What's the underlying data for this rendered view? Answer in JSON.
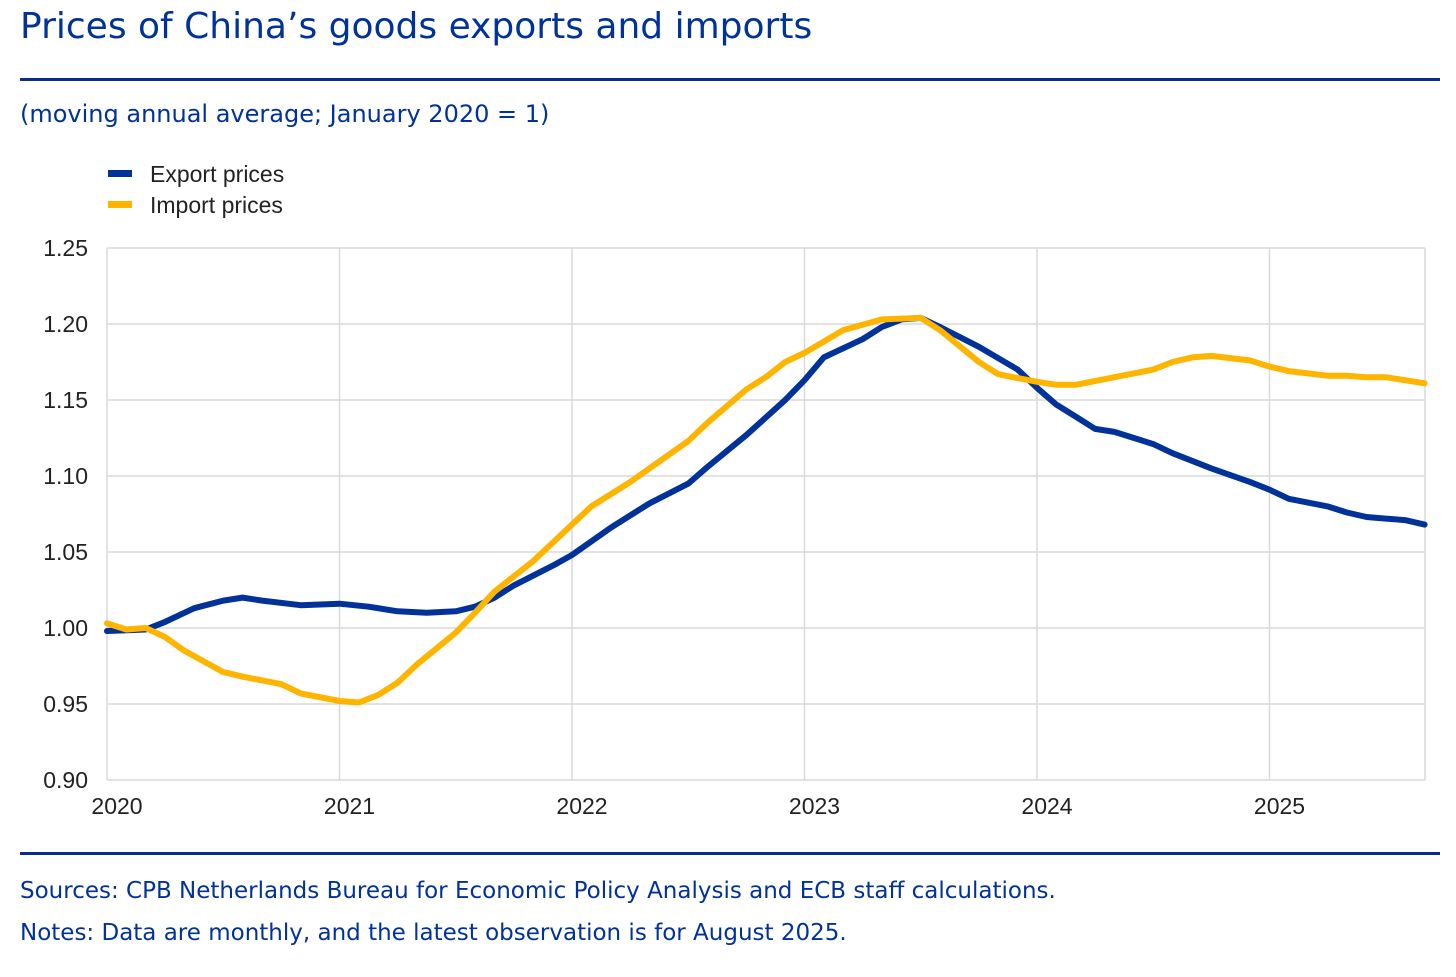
{
  "header": {
    "title": "Prices of China’s goods exports and imports",
    "subtitle": "(moving annual average; January 2020 = 1)"
  },
  "footer": {
    "sources": "Sources: CPB Netherlands Bureau for Economic Policy Analysis and ECB staff calculations.",
    "notes": "Notes: Data are monthly, and the latest observation is for August 2025."
  },
  "colors": {
    "title": "#003299",
    "rule": "#0a2d8c",
    "grid": "#d9d9d9",
    "export": "#003299",
    "import": "#FFB400"
  },
  "chart_data": {
    "type": "line",
    "title": "Prices of China’s goods exports and imports",
    "subtitle": "(moving annual average; January 2020 = 1)",
    "xlabel": "",
    "ylabel": "",
    "x_start": "2020-01",
    "x_end": "2025-08",
    "xlim": [
      2020.0,
      2025.667
    ],
    "ylim": [
      0.9,
      1.25
    ],
    "x_ticks": [
      2020,
      2021,
      2022,
      2023,
      2024,
      2025
    ],
    "x_tick_labels": [
      "2020",
      "2021",
      "2022",
      "2023",
      "2024",
      "2025"
    ],
    "y_ticks": [
      0.9,
      0.95,
      1.0,
      1.05,
      1.1,
      1.15,
      1.2,
      1.25
    ],
    "y_tick_labels": [
      "0.90",
      "0.95",
      "1.00",
      "1.05",
      "1.10",
      "1.15",
      "1.20",
      "1.25"
    ],
    "grid": true,
    "legend_position": "top-left",
    "series": [
      {
        "name": "Export prices",
        "color": "#003299",
        "points": [
          [
            2020.0,
            0.998
          ],
          [
            2020.167,
            0.999
          ],
          [
            2020.25,
            1.004
          ],
          [
            2020.375,
            1.013
          ],
          [
            2020.5,
            1.018
          ],
          [
            2020.583,
            1.02
          ],
          [
            2020.667,
            1.018
          ],
          [
            2020.833,
            1.015
          ],
          [
            2021.0,
            1.016
          ],
          [
            2021.125,
            1.014
          ],
          [
            2021.25,
            1.011
          ],
          [
            2021.375,
            1.01
          ],
          [
            2021.5,
            1.011
          ],
          [
            2021.583,
            1.014
          ],
          [
            2021.667,
            1.02
          ],
          [
            2021.75,
            1.028
          ],
          [
            2021.917,
            1.041
          ],
          [
            2022.0,
            1.048
          ],
          [
            2022.167,
            1.066
          ],
          [
            2022.333,
            1.082
          ],
          [
            2022.5,
            1.095
          ],
          [
            2022.583,
            1.106
          ],
          [
            2022.75,
            1.127
          ],
          [
            2022.917,
            1.15
          ],
          [
            2023.0,
            1.163
          ],
          [
            2023.083,
            1.178
          ],
          [
            2023.25,
            1.19
          ],
          [
            2023.333,
            1.198
          ],
          [
            2023.417,
            1.203
          ],
          [
            2023.5,
            1.204
          ],
          [
            2023.583,
            1.198
          ],
          [
            2023.75,
            1.185
          ],
          [
            2023.917,
            1.17
          ],
          [
            2024.0,
            1.158
          ],
          [
            2024.083,
            1.147
          ],
          [
            2024.167,
            1.139
          ],
          [
            2024.25,
            1.131
          ],
          [
            2024.333,
            1.129
          ],
          [
            2024.417,
            1.125
          ],
          [
            2024.5,
            1.121
          ],
          [
            2024.583,
            1.115
          ],
          [
            2024.75,
            1.105
          ],
          [
            2024.917,
            1.096
          ],
          [
            2025.0,
            1.091
          ],
          [
            2025.083,
            1.085
          ],
          [
            2025.25,
            1.08
          ],
          [
            2025.333,
            1.076
          ],
          [
            2025.417,
            1.073
          ],
          [
            2025.5,
            1.072
          ],
          [
            2025.583,
            1.071
          ],
          [
            2025.667,
            1.068
          ]
        ]
      },
      {
        "name": "Import prices",
        "color": "#FFB400",
        "points": [
          [
            2020.0,
            1.003
          ],
          [
            2020.083,
            0.999
          ],
          [
            2020.167,
            1.0
          ],
          [
            2020.25,
            0.994
          ],
          [
            2020.333,
            0.985
          ],
          [
            2020.5,
            0.971
          ],
          [
            2020.583,
            0.968
          ],
          [
            2020.75,
            0.963
          ],
          [
            2020.833,
            0.957
          ],
          [
            2021.0,
            0.952
          ],
          [
            2021.083,
            0.951
          ],
          [
            2021.167,
            0.956
          ],
          [
            2021.25,
            0.964
          ],
          [
            2021.333,
            0.976
          ],
          [
            2021.5,
            0.997
          ],
          [
            2021.583,
            1.01
          ],
          [
            2021.667,
            1.024
          ],
          [
            2021.833,
            1.044
          ],
          [
            2022.0,
            1.068
          ],
          [
            2022.083,
            1.08
          ],
          [
            2022.25,
            1.096
          ],
          [
            2022.333,
            1.105
          ],
          [
            2022.5,
            1.123
          ],
          [
            2022.583,
            1.135
          ],
          [
            2022.75,
            1.157
          ],
          [
            2022.833,
            1.165
          ],
          [
            2022.917,
            1.175
          ],
          [
            2023.0,
            1.181
          ],
          [
            2023.167,
            1.196
          ],
          [
            2023.333,
            1.203
          ],
          [
            2023.5,
            1.204
          ],
          [
            2023.583,
            1.196
          ],
          [
            2023.75,
            1.175
          ],
          [
            2023.833,
            1.167
          ],
          [
            2024.0,
            1.162
          ],
          [
            2024.083,
            1.16
          ],
          [
            2024.167,
            1.16
          ],
          [
            2024.333,
            1.165
          ],
          [
            2024.5,
            1.17
          ],
          [
            2024.583,
            1.175
          ],
          [
            2024.667,
            1.178
          ],
          [
            2024.75,
            1.179
          ],
          [
            2024.917,
            1.176
          ],
          [
            2025.0,
            1.172
          ],
          [
            2025.083,
            1.169
          ],
          [
            2025.25,
            1.166
          ],
          [
            2025.333,
            1.166
          ],
          [
            2025.417,
            1.165
          ],
          [
            2025.5,
            1.165
          ],
          [
            2025.583,
            1.163
          ],
          [
            2025.667,
            1.161
          ]
        ]
      }
    ]
  }
}
